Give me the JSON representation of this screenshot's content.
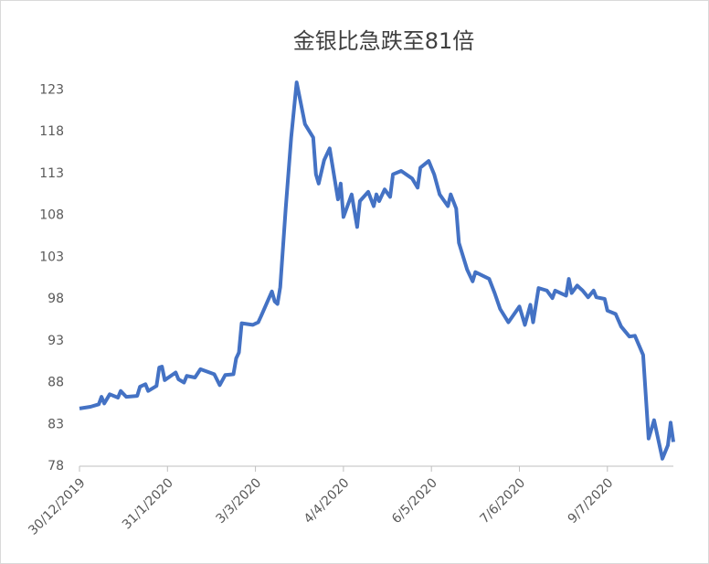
{
  "chart_data": {
    "type": "line",
    "title": "金银比急跌至81倍",
    "x": [
      "2019-12-30",
      "2020-01-03",
      "2020-01-06",
      "2020-01-07",
      "2020-01-08",
      "2020-01-10",
      "2020-01-13",
      "2020-01-14",
      "2020-01-16",
      "2020-01-20",
      "2020-01-21",
      "2020-01-23",
      "2020-01-24",
      "2020-01-27",
      "2020-01-28",
      "2020-01-29",
      "2020-01-30",
      "2020-02-03",
      "2020-02-04",
      "2020-02-06",
      "2020-02-07",
      "2020-02-10",
      "2020-02-12",
      "2020-02-17",
      "2020-02-19",
      "2020-02-21",
      "2020-02-24",
      "2020-02-25",
      "2020-02-26",
      "2020-02-27",
      "2020-03-02",
      "2020-03-04",
      "2020-03-05",
      "2020-03-09",
      "2020-03-10",
      "2020-03-11",
      "2020-03-12",
      "2020-03-14",
      "2020-03-16",
      "2020-03-18",
      "2020-03-21",
      "2020-03-24",
      "2020-03-25",
      "2020-03-26",
      "2020-03-28",
      "2020-03-30",
      "2020-04-02",
      "2020-04-03",
      "2020-04-04",
      "2020-04-07",
      "2020-04-09",
      "2020-04-10",
      "2020-04-13",
      "2020-04-15",
      "2020-04-16",
      "2020-04-17",
      "2020-04-19",
      "2020-04-21",
      "2020-04-22",
      "2020-04-25",
      "2020-04-29",
      "2020-05-01",
      "2020-05-02",
      "2020-05-05",
      "2020-05-07",
      "2020-05-09",
      "2020-05-12",
      "2020-05-13",
      "2020-05-15",
      "2020-05-16",
      "2020-05-19",
      "2020-05-21",
      "2020-05-22",
      "2020-05-27",
      "2020-05-29",
      "2020-05-31",
      "2020-06-03",
      "2020-06-07",
      "2020-06-09",
      "2020-06-11",
      "2020-06-12",
      "2020-06-14",
      "2020-06-17",
      "2020-06-19",
      "2020-06-20",
      "2020-06-24",
      "2020-06-25",
      "2020-06-26",
      "2020-06-28",
      "2020-06-30",
      "2020-07-02",
      "2020-07-04",
      "2020-07-05",
      "2020-07-08",
      "2020-07-09",
      "2020-07-12",
      "2020-07-14",
      "2020-07-17",
      "2020-07-19",
      "2020-07-22",
      "2020-07-24",
      "2020-07-26",
      "2020-07-29",
      "2020-07-31",
      "2020-08-01",
      "2020-08-02"
    ],
    "series": [
      {
        "name": "金银比",
        "color": "#4472c4",
        "values": [
          84.9,
          85.1,
          85.4,
          86.3,
          85.5,
          86.6,
          86.2,
          87,
          86.3,
          86.4,
          87.5,
          87.8,
          87,
          87.6,
          89.8,
          89.9,
          88.3,
          89.2,
          88.4,
          88,
          88.8,
          88.6,
          89.6,
          89,
          87.7,
          88.9,
          89,
          90.9,
          91.6,
          95.1,
          94.9,
          95.2,
          95.9,
          98.9,
          97.7,
          97.4,
          99.4,
          108.8,
          117.3,
          123.9,
          118.9,
          117.3,
          112.9,
          111.8,
          114.6,
          116,
          109.9,
          111.8,
          107.8,
          110.5,
          106.6,
          109.7,
          110.8,
          109.1,
          110.5,
          109.7,
          111.1,
          110.2,
          112.9,
          113.3,
          112.4,
          111.3,
          113.7,
          114.5,
          112.9,
          110.5,
          109.1,
          110.5,
          108.8,
          104.7,
          101.5,
          100.1,
          101.2,
          100.4,
          98.7,
          96.8,
          95.2,
          97.1,
          94.9,
          97.3,
          95.2,
          99.3,
          99,
          98.1,
          99,
          98.4,
          100.4,
          98.7,
          99.6,
          99,
          98.2,
          99,
          98.2,
          98,
          96.6,
          96.2,
          94.7,
          93.5,
          93.6,
          91.3,
          81.3,
          83.5,
          78.9,
          80.5,
          83.2,
          80.9
        ]
      }
    ],
    "xlim": [
      "2019-12-30",
      "2020-08-02"
    ],
    "xticks": [
      {
        "value": "2019-12-30",
        "label": "30/12/2019"
      },
      {
        "value": "2020-01-31",
        "label": "31/1/2020"
      },
      {
        "value": "2020-03-03",
        "label": "3/3/2020"
      },
      {
        "value": "2020-04-04",
        "label": "4/4/2020"
      },
      {
        "value": "2020-05-06",
        "label": "6/5/2020"
      },
      {
        "value": "2020-06-07",
        "label": "7/6/2020"
      },
      {
        "value": "2020-07-09",
        "label": "9/7/2020"
      }
    ],
    "ylim": [
      78,
      125
    ],
    "yticks": [
      78,
      83,
      88,
      93,
      98,
      103,
      108,
      113,
      118,
      123
    ]
  }
}
